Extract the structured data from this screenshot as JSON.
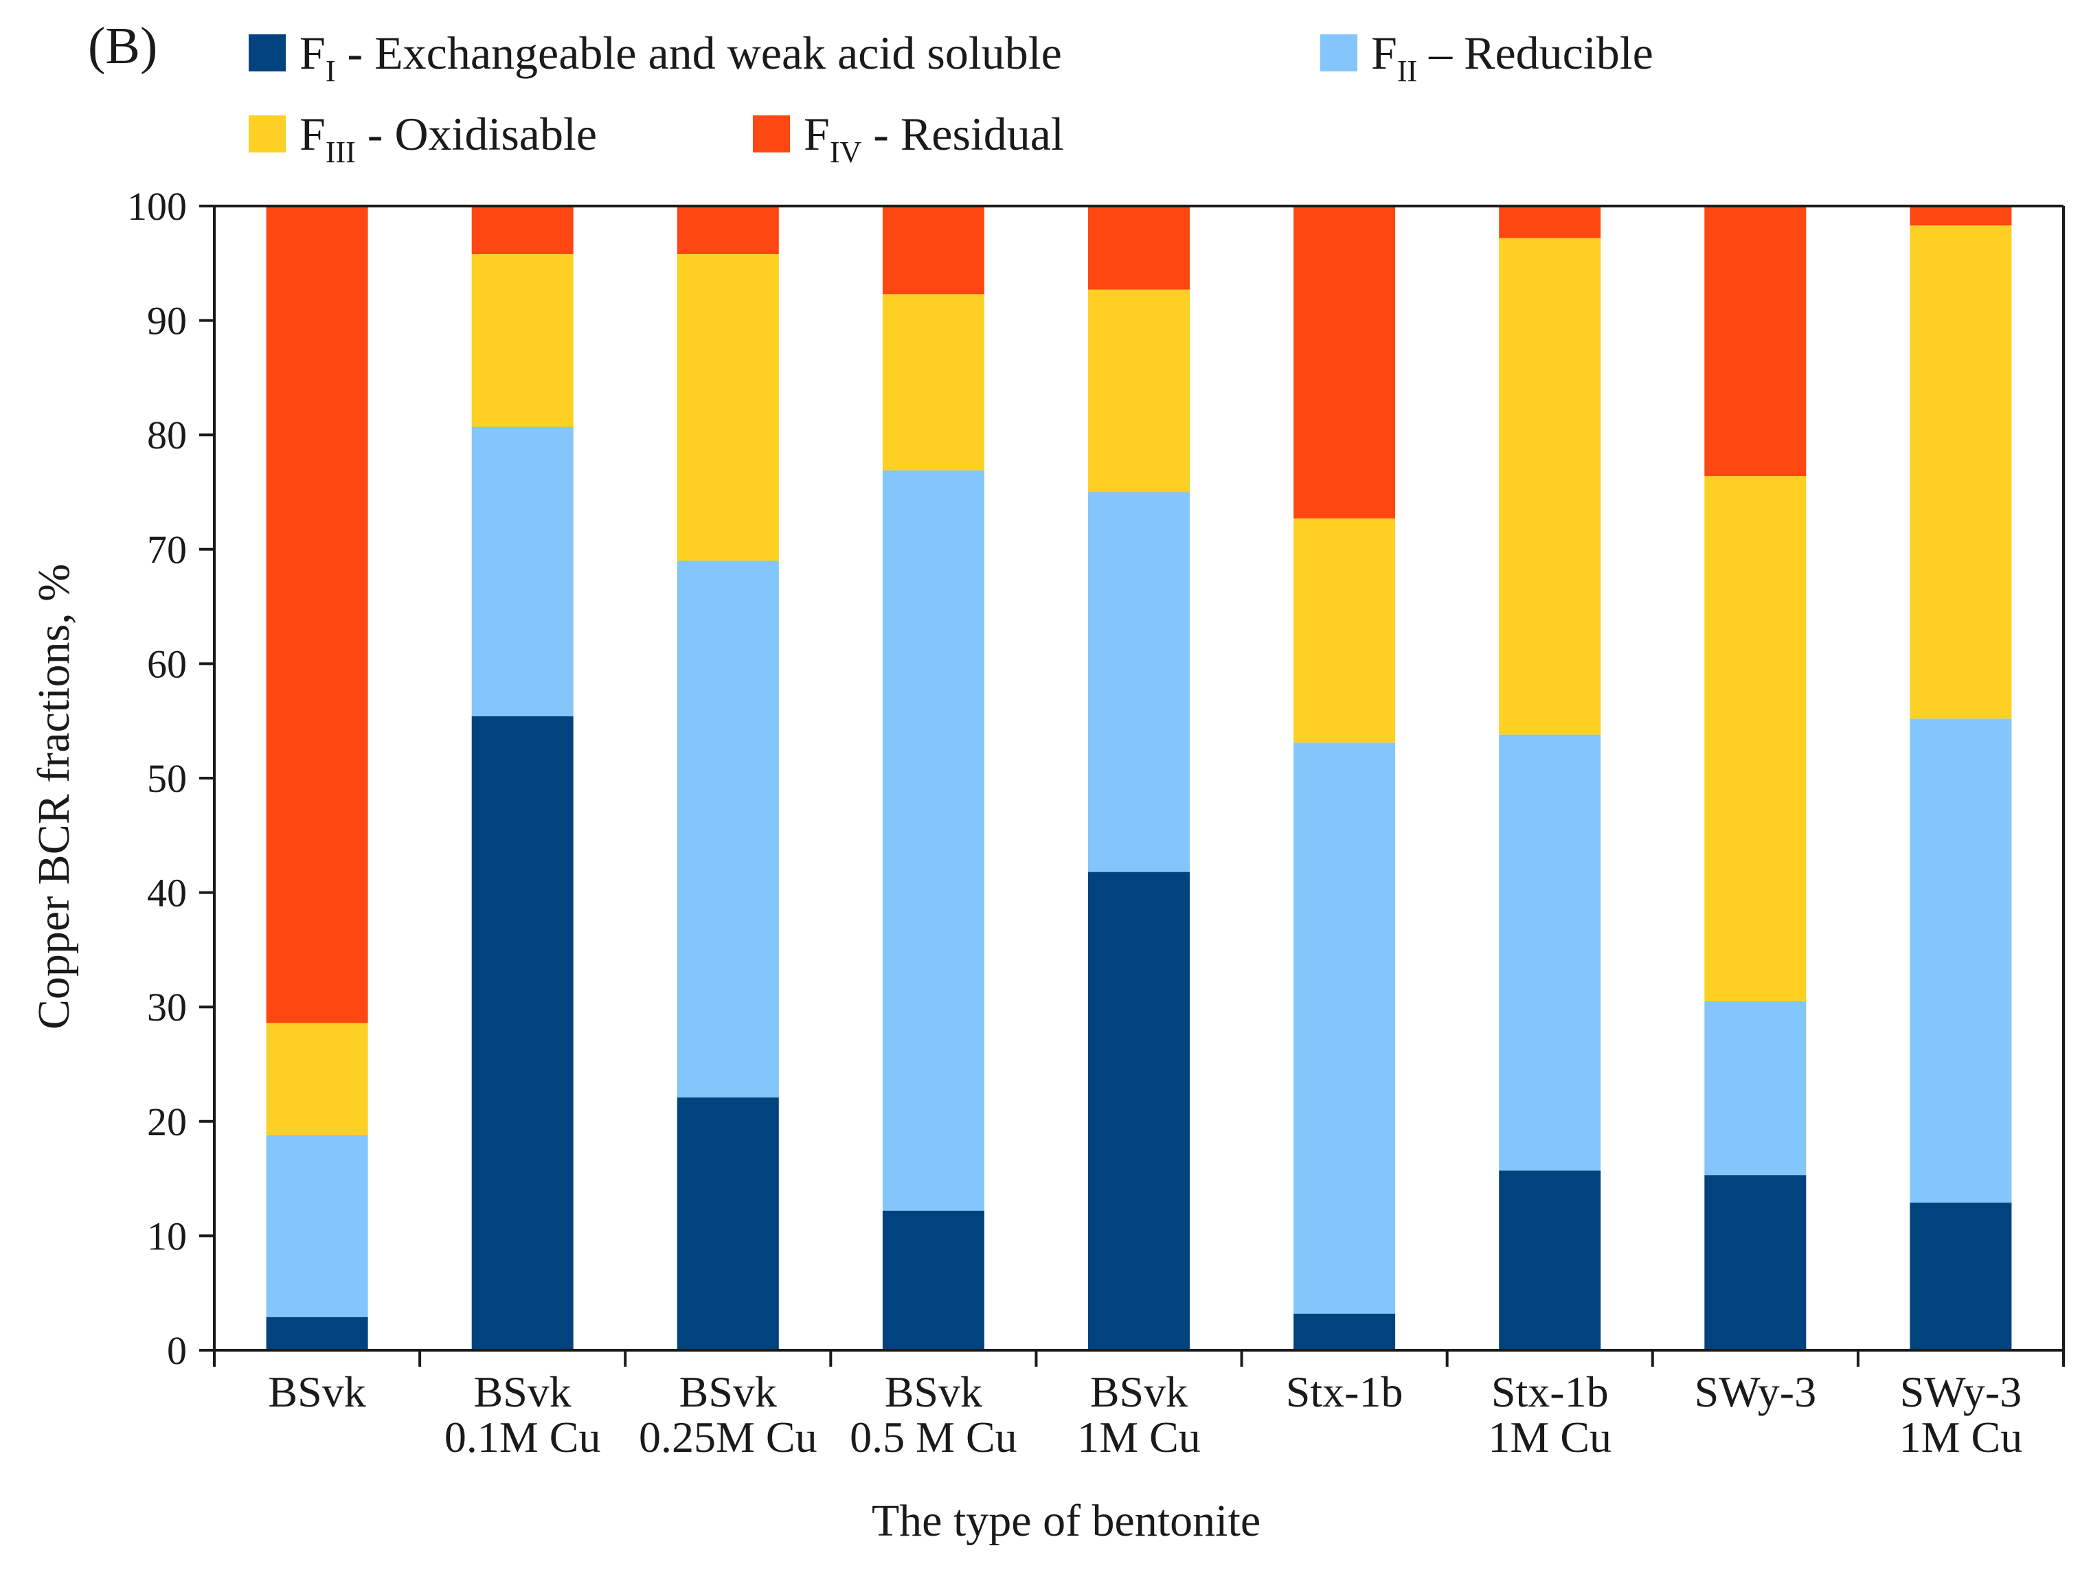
{
  "panel_label": "(B)",
  "colors": {
    "F_I": "#00437f",
    "F_II": "#82c6fb",
    "F_III": "#fdd023",
    "F_IV": "#fe4711",
    "axis": "#1a1a1a"
  },
  "legend": [
    {
      "key": "F_I",
      "main": "F",
      "sub": "I",
      "label": " - Exchangeable and weak acid soluble"
    },
    {
      "key": "F_II",
      "main": "F",
      "sub": "II",
      "label": " – Reducible"
    },
    {
      "key": "F_III",
      "main": "F",
      "sub": "III",
      "label": " - Oxidisable"
    },
    {
      "key": "F_IV",
      "main": "F",
      "sub": "IV",
      "label": " - Residual"
    }
  ],
  "chart_data": {
    "type": "bar",
    "stacked": true,
    "title": "",
    "xlabel": "The type of bentonite",
    "ylabel": "Copper BCR fractions, %",
    "ylim": [
      0,
      100
    ],
    "yticks": [
      0,
      10,
      20,
      30,
      40,
      50,
      60,
      70,
      80,
      90,
      100
    ],
    "grid": false,
    "legend_position": "top",
    "categories": [
      [
        "BSvk"
      ],
      [
        "BSvk",
        "0.1M Cu"
      ],
      [
        "BSvk",
        "0.25M Cu"
      ],
      [
        "BSvk",
        "0.5 M Cu"
      ],
      [
        "BSvk",
        "1M Cu"
      ],
      [
        "Stx-1b"
      ],
      [
        "Stx-1b",
        "1M Cu"
      ],
      [
        "SWy-3"
      ],
      [
        "SWy-3",
        "1M Cu"
      ]
    ],
    "series": [
      {
        "name": "FI - Exchangeable and weak acid soluble",
        "key": "F_I",
        "values": [
          2.9,
          55.4,
          22.1,
          12.2,
          41.8,
          3.2,
          15.7,
          15.3,
          12.9
        ]
      },
      {
        "name": "FII – Reducible",
        "key": "F_II",
        "values": [
          15.9,
          25.3,
          46.9,
          64.7,
          33.2,
          49.9,
          38.1,
          15.2,
          42.3
        ]
      },
      {
        "name": "FIII - Oxidisable",
        "key": "F_III",
        "values": [
          9.8,
          15.1,
          26.8,
          15.4,
          17.7,
          19.6,
          43.4,
          45.9,
          43.1
        ]
      },
      {
        "name": "FIV - Residual",
        "key": "F_IV",
        "values": [
          71.4,
          4.2,
          4.2,
          7.7,
          7.3,
          27.3,
          2.8,
          23.6,
          1.7
        ]
      }
    ]
  }
}
